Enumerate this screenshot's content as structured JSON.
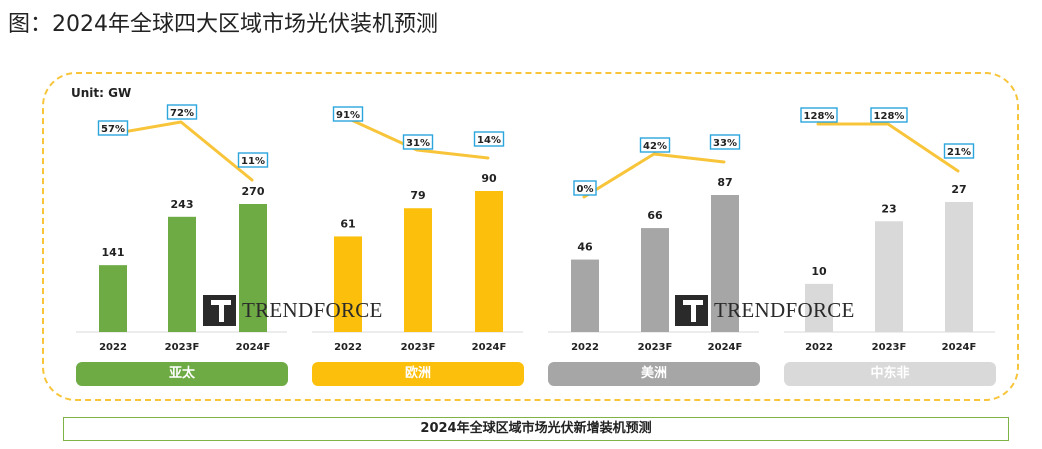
{
  "page_title": "图：2024年全球四大区域市场光伏装机预测",
  "unit_label": "Unit: GW",
  "footer_title": "2024年全球区域市场光伏新增装机预测",
  "watermark": "TRENDFORCE",
  "colors": {
    "dashed_border": "#f8c53a",
    "growth_line": "#f8c53a",
    "badge_border": "#2aa6dc",
    "footer_border": "#7fb247"
  },
  "chart_data": [
    {
      "type": "bar",
      "region": "亚太",
      "color": "#6fab45",
      "categories": [
        "2022",
        "2023F",
        "2024F"
      ],
      "values": [
        141,
        243,
        270
      ],
      "growth_rates": [
        "57%",
        "72%",
        "11%"
      ],
      "ylabel": "GW"
    },
    {
      "type": "bar",
      "region": "欧洲",
      "color": "#fcc00c",
      "categories": [
        "2022",
        "2023F",
        "2024F"
      ],
      "values": [
        61,
        79,
        90
      ],
      "growth_rates": [
        "91%",
        "31%",
        "14%"
      ],
      "ylabel": "GW"
    },
    {
      "type": "bar",
      "region": "美洲",
      "color": "#a6a6a6",
      "categories": [
        "2022",
        "2023F",
        "2024F"
      ],
      "values": [
        46,
        66,
        87
      ],
      "growth_rates": [
        "0%",
        "42%",
        "33%"
      ],
      "ylabel": "GW"
    },
    {
      "type": "bar",
      "region": "中东非",
      "color": "#d9d9d9",
      "categories": [
        "2022",
        "2023F",
        "2024F"
      ],
      "values": [
        10,
        23,
        27
      ],
      "growth_rates": [
        "128%",
        "128%",
        "21%"
      ],
      "ylabel": "GW"
    }
  ]
}
